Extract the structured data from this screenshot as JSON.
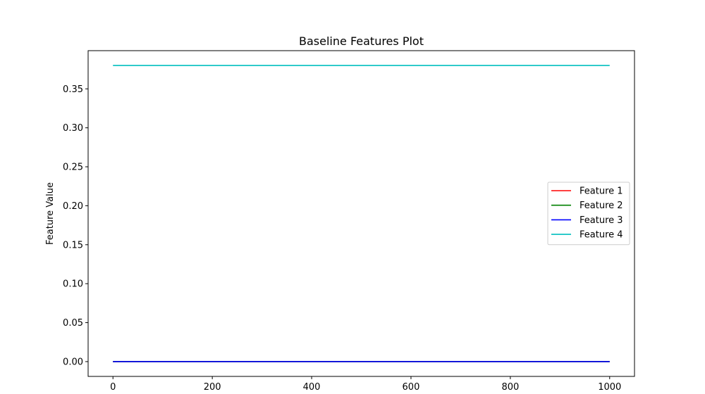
{
  "chart_data": {
    "type": "line",
    "title": "Baseline Features Plot",
    "xlabel": "",
    "ylabel": "Feature Value",
    "xlim": [
      -50,
      1050
    ],
    "ylim": [
      -0.019,
      0.399
    ],
    "xticks": [
      0,
      200,
      400,
      600,
      800,
      1000
    ],
    "xtick_labels": [
      "0",
      "200",
      "400",
      "600",
      "800",
      "1000"
    ],
    "yticks": [
      0.0,
      0.05,
      0.1,
      0.15,
      0.2,
      0.25,
      0.3,
      0.35
    ],
    "ytick_labels": [
      "0.00",
      "0.05",
      "0.10",
      "0.15",
      "0.20",
      "0.25",
      "0.30",
      "0.35"
    ],
    "grid": false,
    "legend_position": "center-right",
    "series": [
      {
        "name": "Feature 1",
        "color": "#ff0000",
        "x": [
          0,
          1000
        ],
        "y": [
          0.0,
          0.0
        ]
      },
      {
        "name": "Feature 2",
        "color": "#008000",
        "x": [
          0,
          1000
        ],
        "y": [
          0.0,
          0.0
        ]
      },
      {
        "name": "Feature 3",
        "color": "#0000ff",
        "x": [
          0,
          1000
        ],
        "y": [
          0.0,
          0.0
        ]
      },
      {
        "name": "Feature 4",
        "color": "#00bfbf",
        "x": [
          0,
          1000
        ],
        "y": [
          0.38,
          0.38
        ]
      }
    ]
  }
}
